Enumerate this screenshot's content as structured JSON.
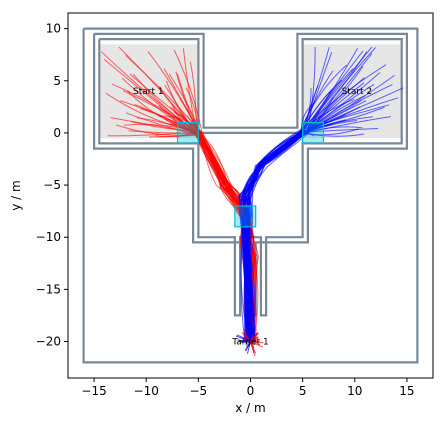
{
  "chart_data": {
    "type": "line",
    "xlabel": "x / m",
    "ylabel": "y / m",
    "xlim": [
      -17.5,
      17.5
    ],
    "ylim": [
      -23.5,
      11.5
    ],
    "xticks": [
      -15,
      -10,
      -5,
      0,
      5,
      10,
      15
    ],
    "yticks": [
      10,
      5,
      0,
      -5,
      -10,
      -15,
      -20
    ],
    "colors": {
      "series_a": "#ff0000",
      "series_b": "#0000ff",
      "wall": "#778899",
      "wall_fill": "#ffffff",
      "start_zone": "#e6e6e6",
      "waypoint": "#00bcd4"
    },
    "annotations": [
      {
        "text": "Start 1",
        "x": -9.8,
        "y": 4.0
      },
      {
        "text": "Start 2",
        "x": 10.2,
        "y": 4.0
      },
      {
        "text": "Target 1",
        "x": 0.0,
        "y": -20.0
      }
    ],
    "walls": [
      [
        [
          -16,
          10
        ],
        [
          16,
          10
        ],
        [
          16,
          -22
        ],
        [
          -16,
          -22
        ],
        [
          -16,
          10
        ]
      ],
      [
        [
          -15,
          9.5
        ],
        [
          -4.5,
          9.5
        ],
        [
          -4.5,
          0.5
        ],
        [
          4.5,
          0.5
        ],
        [
          4.5,
          9.5
        ],
        [
          15,
          9.5
        ],
        [
          15,
          -1.5
        ],
        [
          5.5,
          -1.5
        ],
        [
          5.5,
          -10.5
        ],
        [
          0.5,
          -10.5
        ],
        [
          0.5,
          -17.5
        ],
        [
          -0.5,
          -17.5
        ],
        [
          -0.5,
          -10.5
        ],
        [
          -5.5,
          -10.5
        ],
        [
          -5.5,
          -1.5
        ],
        [
          -15,
          -1.5
        ],
        [
          -15,
          9.5
        ]
      ],
      [
        [
          -14.5,
          9
        ],
        [
          -5,
          9
        ],
        [
          -5,
          0
        ],
        [
          5,
          0
        ],
        [
          5,
          9
        ],
        [
          14.5,
          9
        ],
        [
          14.5,
          -1
        ],
        [
          5,
          -1
        ],
        [
          5,
          -10
        ],
        [
          1.5,
          -10
        ],
        [
          1.5,
          -17.5
        ],
        [
          1.0,
          -17.5
        ],
        [
          1.0,
          -10
        ],
        [
          -1.0,
          -10
        ],
        [
          -1.0,
          -17.5
        ],
        [
          -1.5,
          -17.5
        ],
        [
          -1.5,
          -10
        ],
        [
          -5,
          -10
        ],
        [
          -5,
          -1
        ],
        [
          -14.5,
          -1
        ],
        [
          -14.5,
          9
        ]
      ]
    ],
    "start_zones": [
      {
        "x": [
          -14.5,
          -5
        ],
        "y": [
          -0.5,
          8.5
        ]
      },
      {
        "x": [
          5,
          14.5
        ],
        "y": [
          -0.5,
          8.5
        ]
      }
    ],
    "waypoint_boxes": [
      {
        "x": [
          -7,
          -5
        ],
        "y": [
          -1,
          1
        ]
      },
      {
        "x": [
          5,
          7
        ],
        "y": [
          -1,
          1
        ]
      },
      {
        "x": [
          -1.5,
          0.5
        ],
        "y": [
          -9,
          -7
        ]
      }
    ],
    "series": [
      {
        "color": "#ff0000",
        "count": 48,
        "start_center": [
          -9.8,
          4.0
        ],
        "start_spread": [
          4.5,
          4.5
        ],
        "via": [
          [
            -5.0,
            0.0
          ],
          [
            -2.5,
            -5.0
          ],
          [
            -0.5,
            -8.0
          ],
          [
            0.0,
            -12.0
          ],
          [
            0.0,
            -20.0
          ]
        ]
      },
      {
        "color": "#0000ff",
        "count": 48,
        "start_center": [
          10.2,
          4.0
        ],
        "start_spread": [
          4.5,
          4.5
        ],
        "via": [
          [
            5.0,
            0.0
          ],
          [
            1.0,
            -3.0
          ],
          [
            -0.5,
            -6.0
          ],
          [
            -0.3,
            -10.0
          ],
          [
            0.0,
            -20.0
          ]
        ]
      }
    ]
  }
}
